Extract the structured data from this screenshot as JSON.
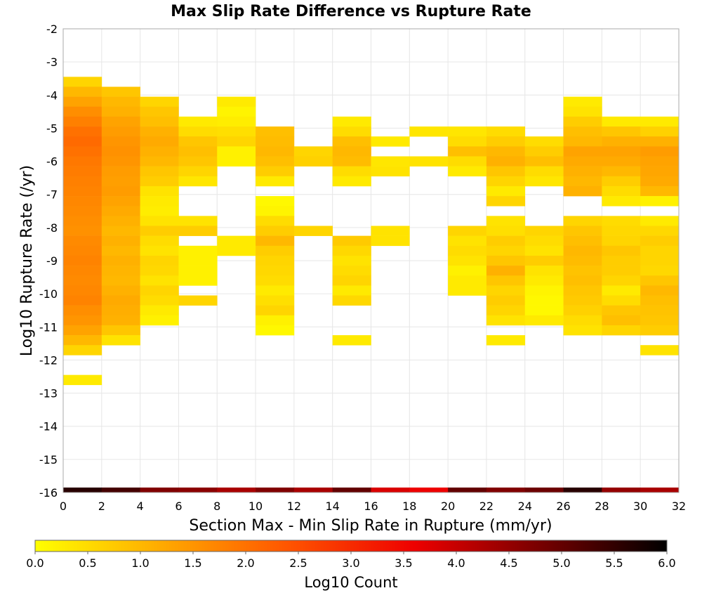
{
  "chart_data": {
    "type": "heatmap",
    "title": "Max Slip Rate Difference vs Rupture Rate",
    "xlabel": "Section Max - Min Slip Rate in Rupture (mm/yr)",
    "ylabel": "Log10 Rupture Rate (/yr)",
    "xlim": [
      0,
      32
    ],
    "ylim": [
      -16,
      -2
    ],
    "x_ticks": [
      0,
      2,
      4,
      6,
      8,
      10,
      12,
      14,
      16,
      18,
      20,
      22,
      24,
      26,
      28,
      30,
      32
    ],
    "y_ticks": [
      -2,
      -3,
      -4,
      -5,
      -6,
      -7,
      -8,
      -9,
      -10,
      -11,
      -12,
      -13,
      -14,
      -15,
      -16
    ],
    "x_bin_width": 2,
    "y_bin_width": 0.3,
    "grid": true,
    "colorbar": {
      "label": "Log10 Count",
      "range": [
        0.0,
        6.0
      ],
      "ticks": [
        "0.0",
        "0.5",
        "1.0",
        "1.5",
        "2.0",
        "2.5",
        "3.0",
        "3.5",
        "4.0",
        "4.5",
        "5.0",
        "5.5",
        "6.0"
      ],
      "colors": [
        "#FFFF00",
        "#FFAA00",
        "#FF5500",
        "#EE0000",
        "#770000",
        "#000000"
      ]
    },
    "columns": [
      {
        "x": 0,
        "cells": [
          [
            -3.6,
            0.6
          ],
          [
            -3.9,
            1.0
          ],
          [
            -4.2,
            1.3
          ],
          [
            -4.5,
            1.6
          ],
          [
            -4.8,
            1.8
          ],
          [
            -5.1,
            2.0
          ],
          [
            -5.4,
            2.1
          ],
          [
            -5.7,
            2.0
          ],
          [
            -6.0,
            1.9
          ],
          [
            -6.3,
            1.85
          ],
          [
            -6.6,
            1.8
          ],
          [
            -6.9,
            1.75
          ],
          [
            -7.2,
            1.7
          ],
          [
            -7.5,
            1.65
          ],
          [
            -7.8,
            1.6
          ],
          [
            -8.1,
            1.55
          ],
          [
            -8.4,
            1.65
          ],
          [
            -8.7,
            1.7
          ],
          [
            -9.0,
            1.75
          ],
          [
            -9.3,
            1.7
          ],
          [
            -9.6,
            1.65
          ],
          [
            -9.9,
            1.7
          ],
          [
            -10.2,
            1.75
          ],
          [
            -10.5,
            1.6
          ],
          [
            -10.8,
            1.5
          ],
          [
            -11.1,
            1.3
          ],
          [
            -11.4,
            1.0
          ],
          [
            -11.7,
            0.6
          ],
          [
            -12.6,
            0.3
          ]
        ]
      },
      {
        "x": 2,
        "cells": [
          [
            -3.9,
            0.8
          ],
          [
            -4.2,
            1.0
          ],
          [
            -4.5,
            1.1
          ],
          [
            -4.8,
            1.3
          ],
          [
            -5.1,
            1.4
          ],
          [
            -5.4,
            1.5
          ],
          [
            -5.7,
            1.55
          ],
          [
            -6.0,
            1.5
          ],
          [
            -6.3,
            1.4
          ],
          [
            -6.6,
            1.35
          ],
          [
            -6.9,
            1.4
          ],
          [
            -7.2,
            1.3
          ],
          [
            -7.5,
            1.2
          ],
          [
            -7.8,
            1.1
          ],
          [
            -8.1,
            1.0
          ],
          [
            -8.4,
            1.1
          ],
          [
            -8.7,
            1.0
          ],
          [
            -9.0,
            1.1
          ],
          [
            -9.3,
            1.05
          ],
          [
            -9.6,
            1.0
          ],
          [
            -9.9,
            1.1
          ],
          [
            -10.2,
            1.2
          ],
          [
            -10.5,
            1.15
          ],
          [
            -10.8,
            1.1
          ],
          [
            -11.1,
            0.8
          ],
          [
            -11.4,
            0.4
          ]
        ]
      },
      {
        "x": 4,
        "cells": [
          [
            -4.2,
            0.6
          ],
          [
            -4.5,
            0.8
          ],
          [
            -4.8,
            0.9
          ],
          [
            -5.1,
            1.1
          ],
          [
            -5.4,
            1.2
          ],
          [
            -5.7,
            1.1
          ],
          [
            -6.0,
            1.0
          ],
          [
            -6.3,
            0.8
          ],
          [
            -6.6,
            0.7
          ],
          [
            -6.9,
            0.4
          ],
          [
            -7.2,
            0.3
          ],
          [
            -7.5,
            0.25
          ],
          [
            -7.8,
            0.4
          ],
          [
            -8.1,
            0.7
          ],
          [
            -8.4,
            0.5
          ],
          [
            -8.7,
            0.4
          ],
          [
            -9.0,
            0.6
          ],
          [
            -9.3,
            0.55
          ],
          [
            -9.6,
            0.4
          ],
          [
            -9.9,
            0.6
          ],
          [
            -10.2,
            0.5
          ],
          [
            -10.5,
            0.3
          ],
          [
            -10.8,
            0.2
          ]
        ]
      },
      {
        "x": 6,
        "cells": [
          [
            -4.8,
            0.3
          ],
          [
            -5.1,
            0.5
          ],
          [
            -5.4,
            0.8
          ],
          [
            -5.7,
            0.9
          ],
          [
            -6.0,
            0.8
          ],
          [
            -6.3,
            0.6
          ],
          [
            -6.6,
            0.35
          ],
          [
            -7.8,
            0.4
          ],
          [
            -8.1,
            0.7
          ],
          [
            -8.7,
            0.2
          ],
          [
            -9.0,
            0.2
          ],
          [
            -9.3,
            0.2
          ],
          [
            -9.6,
            0.2
          ],
          [
            -10.2,
            0.6
          ]
        ]
      },
      {
        "x": 8,
        "cells": [
          [
            -4.2,
            0.3
          ],
          [
            -4.5,
            0.15
          ],
          [
            -4.8,
            0.25
          ],
          [
            -5.1,
            0.45
          ],
          [
            -5.4,
            0.6
          ],
          [
            -5.7,
            0.2
          ],
          [
            -6.0,
            0.2
          ],
          [
            -8.4,
            0.3
          ],
          [
            -8.7,
            0.3
          ]
        ]
      },
      {
        "x": 10,
        "cells": [
          [
            -5.1,
            0.9
          ],
          [
            -5.4,
            0.95
          ],
          [
            -5.7,
            1.0
          ],
          [
            -6.0,
            0.9
          ],
          [
            -6.3,
            0.7
          ],
          [
            -6.6,
            0.3
          ],
          [
            -7.2,
            0.1
          ],
          [
            -7.5,
            0.15
          ],
          [
            -7.8,
            0.5
          ],
          [
            -8.1,
            0.7
          ],
          [
            -8.4,
            1.0
          ],
          [
            -8.7,
            0.7
          ],
          [
            -9.0,
            0.6
          ],
          [
            -9.3,
            0.55
          ],
          [
            -9.6,
            0.5
          ],
          [
            -9.9,
            0.3
          ],
          [
            -10.2,
            0.45
          ],
          [
            -10.5,
            0.6
          ],
          [
            -10.8,
            0.2
          ],
          [
            -11.1,
            0.1
          ]
        ]
      },
      {
        "x": 12,
        "cells": [
          [
            -5.7,
            0.6
          ],
          [
            -6.0,
            0.65
          ],
          [
            -8.1,
            0.6
          ]
        ]
      },
      {
        "x": 14,
        "cells": [
          [
            -4.8,
            0.3
          ],
          [
            -5.1,
            0.5
          ],
          [
            -5.4,
            0.9
          ],
          [
            -5.7,
            1.0
          ],
          [
            -6.0,
            0.95
          ],
          [
            -6.3,
            0.5
          ],
          [
            -6.6,
            0.3
          ],
          [
            -8.4,
            0.75
          ],
          [
            -8.7,
            0.55
          ],
          [
            -9.0,
            0.4
          ],
          [
            -9.3,
            0.5
          ],
          [
            -9.6,
            0.6
          ],
          [
            -9.9,
            0.3
          ],
          [
            -10.2,
            0.55
          ],
          [
            -11.4,
            0.3
          ]
        ]
      },
      {
        "x": 16,
        "cells": [
          [
            -5.4,
            0.3
          ],
          [
            -6.0,
            0.35
          ],
          [
            -6.3,
            0.4
          ],
          [
            -8.1,
            0.4
          ],
          [
            -8.4,
            0.4
          ]
        ]
      },
      {
        "x": 18,
        "cells": [
          [
            -5.1,
            0.35
          ],
          [
            -6.0,
            0.4
          ]
        ]
      },
      {
        "x": 20,
        "cells": [
          [
            -5.1,
            0.35
          ],
          [
            -5.4,
            0.5
          ],
          [
            -5.7,
            0.9
          ],
          [
            -6.0,
            0.5
          ],
          [
            -6.3,
            0.3
          ],
          [
            -8.1,
            0.6
          ],
          [
            -8.4,
            0.4
          ],
          [
            -8.7,
            0.5
          ],
          [
            -9.0,
            0.4
          ],
          [
            -9.3,
            0.2
          ],
          [
            -9.6,
            0.3
          ],
          [
            -9.9,
            0.3
          ]
        ]
      },
      {
        "x": 22,
        "cells": [
          [
            -5.1,
            0.5
          ],
          [
            -5.4,
            0.7
          ],
          [
            -5.7,
            1.0
          ],
          [
            -6.0,
            1.1
          ],
          [
            -6.3,
            0.8
          ],
          [
            -6.6,
            0.6
          ],
          [
            -6.9,
            0.3
          ],
          [
            -7.2,
            0.6
          ],
          [
            -7.8,
            0.4
          ],
          [
            -8.1,
            0.45
          ],
          [
            -8.4,
            0.7
          ],
          [
            -8.7,
            0.6
          ],
          [
            -9.0,
            0.8
          ],
          [
            -9.3,
            1.1
          ],
          [
            -9.6,
            0.8
          ],
          [
            -9.9,
            0.6
          ],
          [
            -10.2,
            0.7
          ],
          [
            -10.5,
            0.6
          ],
          [
            -10.8,
            0.4
          ],
          [
            -11.4,
            0.3
          ]
        ]
      },
      {
        "x": 24,
        "cells": [
          [
            -5.4,
            0.5
          ],
          [
            -5.7,
            0.7
          ],
          [
            -6.0,
            0.9
          ],
          [
            -6.3,
            0.5
          ],
          [
            -6.6,
            0.35
          ],
          [
            -8.1,
            0.6
          ],
          [
            -8.4,
            0.5
          ],
          [
            -8.7,
            0.4
          ],
          [
            -9.0,
            0.7
          ],
          [
            -9.3,
            0.4
          ],
          [
            -9.6,
            0.3
          ],
          [
            -9.9,
            0.15
          ],
          [
            -10.2,
            0.1
          ],
          [
            -10.5,
            0.1
          ],
          [
            -10.8,
            0.3
          ]
        ]
      },
      {
        "x": 26,
        "cells": [
          [
            -4.2,
            0.3
          ],
          [
            -4.5,
            0.4
          ],
          [
            -4.8,
            0.7
          ],
          [
            -5.1,
            0.9
          ],
          [
            -5.4,
            1.0
          ],
          [
            -5.7,
            1.3
          ],
          [
            -6.0,
            1.2
          ],
          [
            -6.3,
            1.1
          ],
          [
            -6.6,
            1.0
          ],
          [
            -6.9,
            1.1
          ],
          [
            -7.8,
            0.6
          ],
          [
            -8.1,
            0.8
          ],
          [
            -8.4,
            0.9
          ],
          [
            -8.7,
            1.0
          ],
          [
            -9.0,
            0.95
          ],
          [
            -9.3,
            0.85
          ],
          [
            -9.6,
            0.9
          ],
          [
            -9.9,
            0.8
          ],
          [
            -10.2,
            0.75
          ],
          [
            -10.5,
            0.65
          ],
          [
            -10.8,
            0.5
          ],
          [
            -11.1,
            0.4
          ]
        ]
      },
      {
        "x": 28,
        "cells": [
          [
            -4.8,
            0.3
          ],
          [
            -5.1,
            0.8
          ],
          [
            -5.4,
            1.1
          ],
          [
            -5.7,
            1.3
          ],
          [
            -6.0,
            1.2
          ],
          [
            -6.3,
            1.0
          ],
          [
            -6.6,
            0.7
          ],
          [
            -6.9,
            0.5
          ],
          [
            -7.2,
            0.3
          ],
          [
            -7.8,
            0.5
          ],
          [
            -8.1,
            0.55
          ],
          [
            -8.4,
            0.6
          ],
          [
            -8.7,
            0.8
          ],
          [
            -9.0,
            0.7
          ],
          [
            -9.3,
            0.7
          ],
          [
            -9.6,
            0.6
          ],
          [
            -9.9,
            0.3
          ],
          [
            -10.2,
            0.5
          ],
          [
            -10.5,
            0.8
          ],
          [
            -10.8,
            0.9
          ],
          [
            -11.1,
            0.6
          ]
        ]
      },
      {
        "x": 30,
        "cells": [
          [
            -4.8,
            0.3
          ],
          [
            -5.1,
            0.65
          ],
          [
            -5.4,
            1.1
          ],
          [
            -5.7,
            1.4
          ],
          [
            -6.0,
            1.3
          ],
          [
            -6.3,
            1.25
          ],
          [
            -6.6,
            1.2
          ],
          [
            -6.9,
            1.0
          ],
          [
            -7.2,
            0.2
          ],
          [
            -7.8,
            0.3
          ],
          [
            -8.1,
            0.55
          ],
          [
            -8.4,
            0.7
          ],
          [
            -8.7,
            0.6
          ],
          [
            -9.0,
            0.6
          ],
          [
            -9.3,
            0.55
          ],
          [
            -9.6,
            0.8
          ],
          [
            -9.9,
            1.0
          ],
          [
            -10.2,
            0.9
          ],
          [
            -10.5,
            0.85
          ],
          [
            -10.8,
            0.8
          ],
          [
            -11.1,
            0.7
          ],
          [
            -11.7,
            0.4
          ]
        ]
      }
    ],
    "bottom_row": {
      "y": -16,
      "values": [
        5.6,
        5.3,
        4.7,
        4.6,
        4.3,
        4.7,
        4.3,
        5.0,
        3.8,
        3.6,
        5.0,
        4.7,
        4.9,
        5.6,
        4.5,
        4.3
      ]
    }
  }
}
